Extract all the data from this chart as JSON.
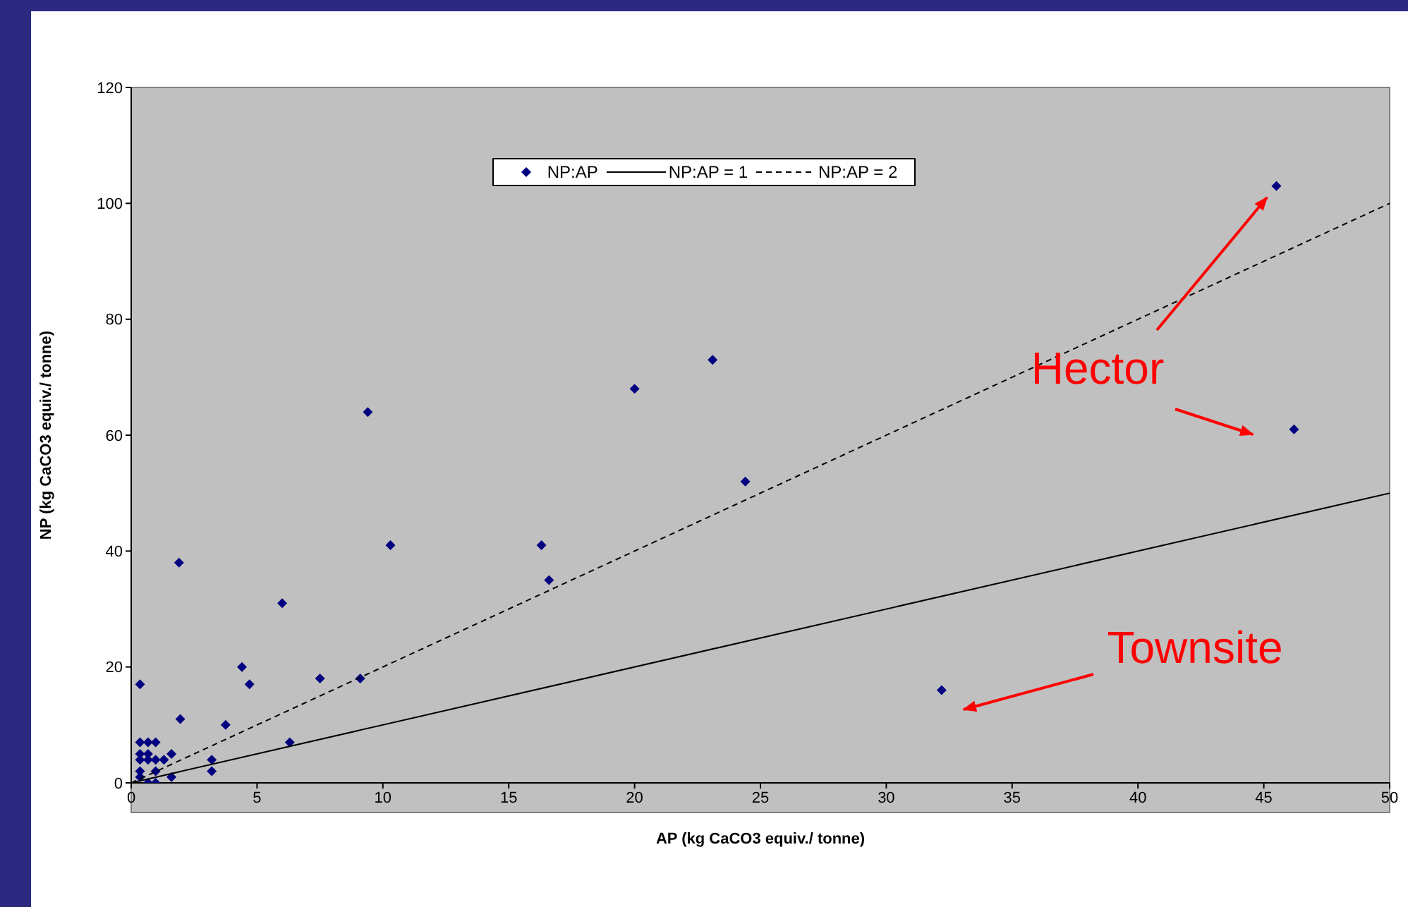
{
  "chart_data": {
    "type": "scatter",
    "xlabel": "AP (kg CaCO3 equiv./ tonne)",
    "ylabel": "NP (kg CaCO3 equiv./ tonne)",
    "xlim": [
      0,
      50
    ],
    "xticks": [
      0,
      5,
      10,
      15,
      20,
      25,
      30,
      35,
      40,
      45,
      50
    ],
    "ylim": [
      0,
      120
    ],
    "yticks": [
      0,
      20,
      40,
      60,
      80,
      100,
      120
    ],
    "legend": "top",
    "marker": "diamond",
    "series": [
      {
        "name": "NP:AP",
        "color": "#000080",
        "x": [
          0.35,
          1.95,
          4.4,
          4.7,
          3.75,
          7.5,
          9.1,
          6.3,
          3.2,
          3.2,
          0.35,
          0.67,
          0.97,
          0.35,
          0.67,
          1.6,
          0.35,
          0.67,
          0.97,
          1.3,
          0.35,
          0.97,
          0.35,
          1.6,
          0.67,
          0.97,
          1.9,
          9.4,
          10.3,
          6.0,
          16.3,
          16.6,
          20.0,
          23.1,
          24.4,
          45.5,
          46.2,
          32.2
        ],
        "values": [
          17,
          11,
          20,
          17,
          10,
          18,
          18,
          7,
          4,
          2,
          7,
          7,
          7,
          5,
          5,
          5,
          4,
          4,
          4,
          4,
          2,
          2,
          1,
          1,
          0,
          0,
          38,
          64,
          41,
          31,
          41,
          35,
          68,
          73,
          52,
          103,
          61,
          16
        ]
      },
      {
        "name": "NP:AP = 1",
        "type": "line",
        "color": "#000000",
        "line_style": "solid",
        "marker": "none",
        "x": [
          0,
          50
        ],
        "values": [
          0,
          50
        ]
      },
      {
        "name": "NP:AP = 2",
        "type": "line",
        "color": "#000000",
        "line_style": "dashed",
        "marker": "none",
        "x": [
          0,
          50
        ],
        "values": [
          0,
          100
        ]
      }
    ],
    "annotations": [
      "Hector",
      "Townsite"
    ]
  }
}
